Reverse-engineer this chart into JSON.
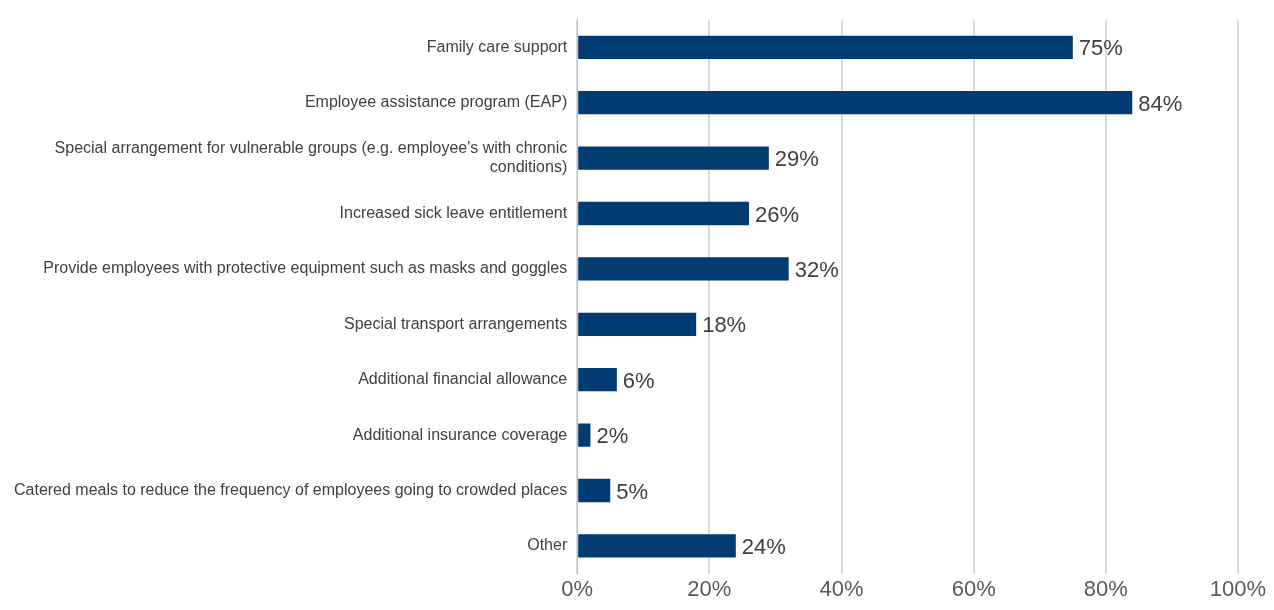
{
  "chart_data": {
    "type": "bar",
    "orientation": "horizontal",
    "categories": [
      "Family care support",
      "Employee assistance program (EAP)",
      "Special arrangement for vulnerable groups (e.g. employee's with chronic conditions)",
      "Increased sick leave entitlement",
      "Provide employees with protective equipment such as masks and goggles",
      "Special transport arrangements",
      "Additional financial allowance",
      "Additional insurance coverage",
      "Catered meals to reduce the frequency of employees going to crowded places",
      "Other"
    ],
    "values": [
      75,
      84,
      29,
      26,
      32,
      18,
      6,
      2,
      5,
      24
    ],
    "value_labels": [
      "75%",
      "84%",
      "29%",
      "26%",
      "32%",
      "18%",
      "6%",
      "2%",
      "5%",
      "24%"
    ],
    "color": "#003b71",
    "xlim": [
      0,
      100
    ],
    "xticks": [
      {
        "value": 0,
        "label": "0%"
      },
      {
        "value": 20,
        "label": "20%"
      },
      {
        "value": 40,
        "label": "40%"
      },
      {
        "value": 60,
        "label": "60%"
      },
      {
        "value": 80,
        "label": "80%"
      },
      {
        "value": 100,
        "label": "100%"
      }
    ],
    "grid": "x",
    "legend": false
  }
}
